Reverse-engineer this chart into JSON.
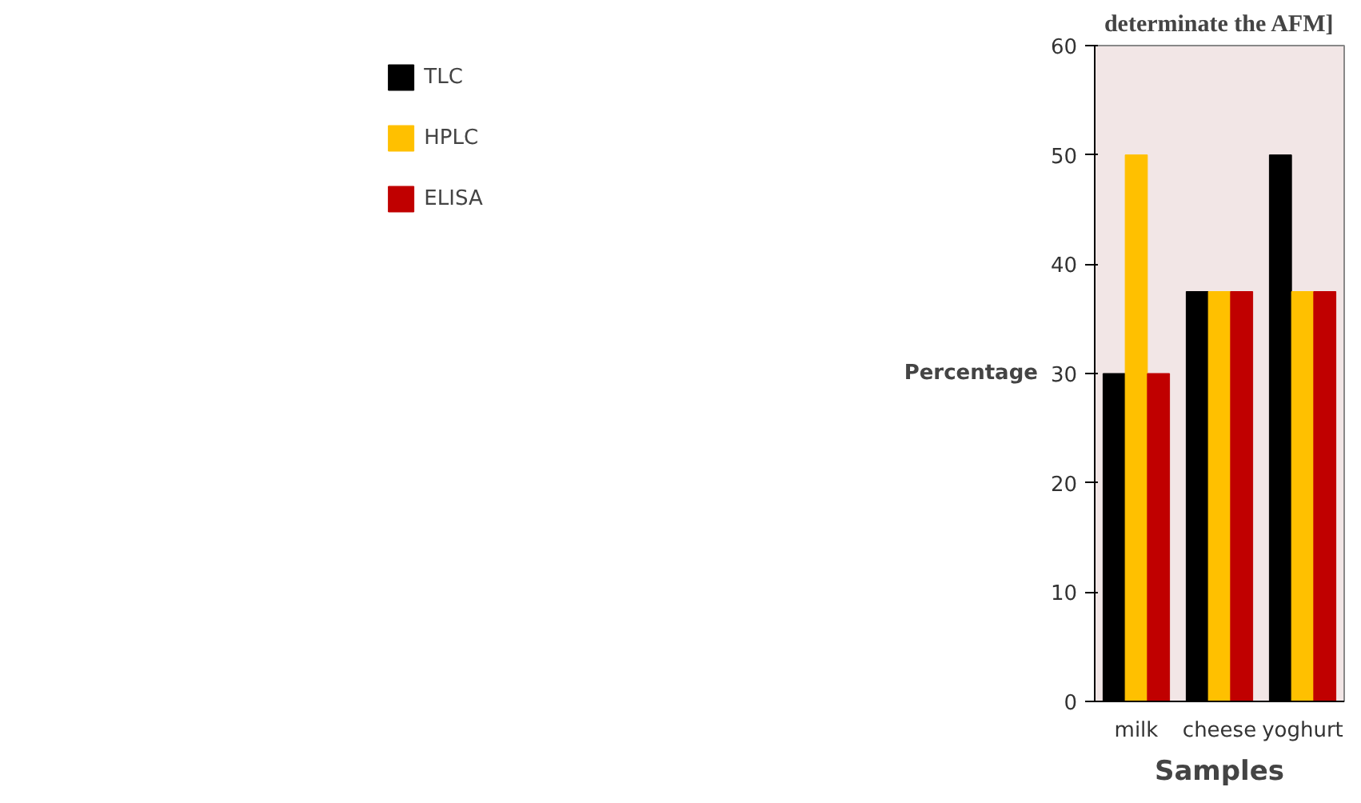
{
  "chart_data": {
    "type": "bar",
    "title": "determinate the AFM]",
    "xlabel": "Samples",
    "ylabel": "Percentage",
    "categories": [
      "milk",
      "cheese",
      "yoghurt"
    ],
    "series": [
      {
        "name": "TLC",
        "color": "#000000",
        "values": [
          30,
          37.5,
          50
        ]
      },
      {
        "name": "HPLC",
        "color": "#ffc000",
        "values": [
          50,
          37.5,
          37.5
        ]
      },
      {
        "name": "ELISA",
        "color": "#c00000",
        "values": [
          30,
          37.5,
          37.5
        ]
      }
    ],
    "ylim": [
      0,
      60
    ],
    "yticks": [
      0,
      10,
      20,
      30,
      40,
      50,
      60
    ],
    "grid": false,
    "legend": "left"
  }
}
